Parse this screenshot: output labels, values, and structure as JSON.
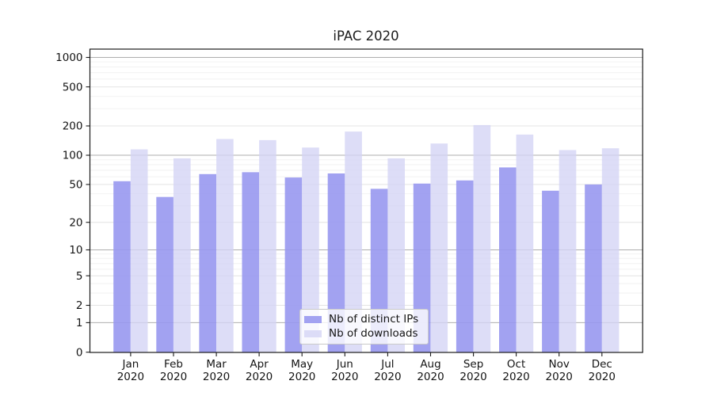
{
  "chart_data": {
    "type": "bar",
    "title": "iPAC 2020",
    "xlabel": "",
    "ylabel": "",
    "yscale": "log1p-symlog",
    "ylim": [
      0,
      1200
    ],
    "grid": true,
    "legend_position": "lower center",
    "yticks": [
      0,
      1,
      2,
      5,
      10,
      20,
      50,
      100,
      200,
      500,
      1000
    ],
    "categories": [
      "Jan 2020",
      "Feb 2020",
      "Mar 2020",
      "Apr 2020",
      "May 2020",
      "Jun 2020",
      "Jul 2020",
      "Aug 2020",
      "Sep 2020",
      "Oct 2020",
      "Nov 2020",
      "Dec 2020"
    ],
    "series": [
      {
        "name": "Nb of distinct IPs",
        "color": "#9898ef",
        "fill_opacity": 0.9,
        "values": [
          54,
          37,
          64,
          67,
          59,
          65,
          45,
          51,
          55,
          75,
          43,
          50
        ]
      },
      {
        "name": "Nb of downloads",
        "color": "#d3d3f5",
        "fill_opacity": 0.78,
        "values": [
          115,
          93,
          147,
          143,
          120,
          175,
          93,
          132,
          204,
          163,
          113,
          118
        ]
      }
    ],
    "grid_colors": {
      "major_decades": "#aeaeae",
      "labeled_mid": "#e4e4e4",
      "minor": "#f2f2f2"
    }
  }
}
